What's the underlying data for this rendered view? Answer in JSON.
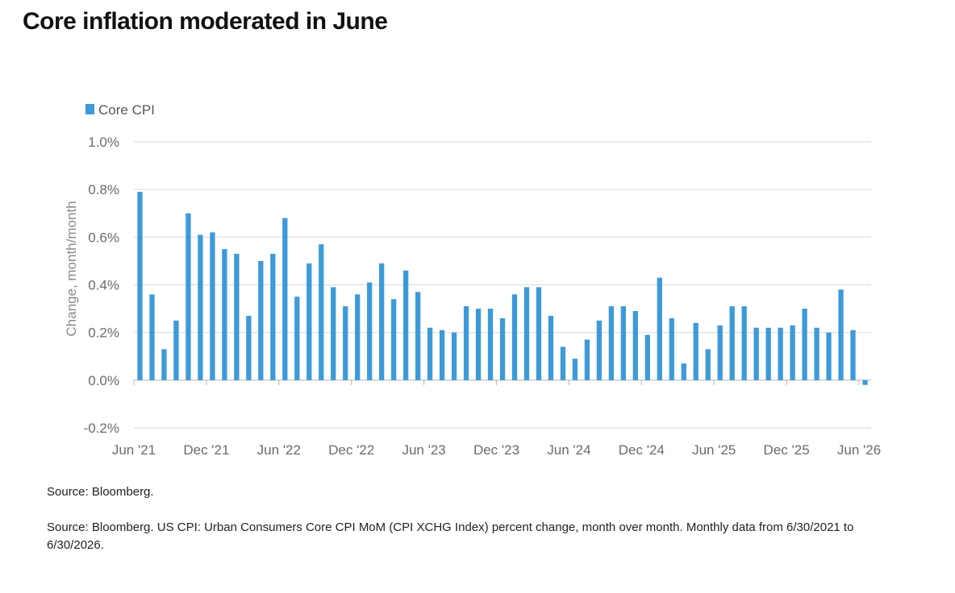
{
  "header": {
    "title": "Core inflation moderated in June"
  },
  "chart_data": {
    "type": "bar",
    "ylabel": "Change, month/month",
    "xlabel": "",
    "ylim": [
      -0.2,
      1.0
    ],
    "yticks": [
      -0.2,
      0.0,
      0.2,
      0.4,
      0.6,
      0.8,
      1.0
    ],
    "ytick_labels": [
      "-0.2%",
      "0.0%",
      "0.2%",
      "0.4%",
      "0.6%",
      "0.8%",
      "1.0%"
    ],
    "grid": true,
    "legend": {
      "position": "top-left",
      "entries": [
        "Core CPI"
      ]
    },
    "xtick_labels": [
      "Jun '21",
      "Dec '21",
      "Jun '22",
      "Dec '22",
      "Jun '23",
      "Dec '23",
      "Jun '24",
      "Dec '24",
      "Jun '25",
      "Dec '25",
      "Jun '26"
    ],
    "xtick_every": 6,
    "colors": {
      "bar": "#3d9ad9",
      "grid": "#dedede",
      "axis": "#bdbdbd"
    },
    "categories": [
      "Jun 2021",
      "Jul 2021",
      "Aug 2021",
      "Sep 2021",
      "Oct 2021",
      "Nov 2021",
      "Dec 2021",
      "Jan 2022",
      "Feb 2022",
      "Mar 2022",
      "Apr 2022",
      "May 2022",
      "Jun 2022",
      "Jul 2022",
      "Aug 2022",
      "Sep 2022",
      "Oct 2022",
      "Nov 2022",
      "Dec 2022",
      "Jan 2023",
      "Feb 2023",
      "Mar 2023",
      "Apr 2023",
      "May 2023",
      "Jun 2023",
      "Jul 2023",
      "Aug 2023",
      "Sep 2023",
      "Oct 2023",
      "Nov 2023",
      "Dec 2023",
      "Jan 2024",
      "Feb 2024",
      "Mar 2024",
      "Apr 2024",
      "May 2024",
      "Jun 2024",
      "Jul 2024",
      "Aug 2024",
      "Sep 2024",
      "Oct 2024",
      "Nov 2024",
      "Dec 2024",
      "Jan 2025",
      "Feb 2025",
      "Mar 2025",
      "Apr 2025",
      "May 2025",
      "Jun 2025",
      "Jul 2025",
      "Aug 2025",
      "Sep 2025",
      "Oct 2025",
      "Nov 2025",
      "Dec 2025",
      "Jan 2026",
      "Feb 2026",
      "Mar 2026",
      "Apr 2026",
      "May 2026",
      "Jun 2026"
    ],
    "series": [
      {
        "name": "Core CPI",
        "values": [
          0.79,
          0.36,
          0.13,
          0.25,
          0.7,
          0.61,
          0.62,
          0.55,
          0.53,
          0.27,
          0.5,
          0.53,
          0.68,
          0.35,
          0.49,
          0.57,
          0.39,
          0.31,
          0.36,
          0.41,
          0.49,
          0.34,
          0.46,
          0.37,
          0.22,
          0.21,
          0.2,
          0.31,
          0.3,
          0.3,
          0.26,
          0.36,
          0.39,
          0.39,
          0.27,
          0.14,
          0.09,
          0.17,
          0.25,
          0.31,
          0.31,
          0.29,
          0.19,
          0.43,
          0.26,
          0.07,
          0.24,
          0.13,
          0.23,
          0.31,
          0.31,
          0.22,
          0.22,
          0.22,
          0.23,
          0.3,
          0.22,
          0.2,
          0.38,
          0.21,
          -0.02
        ]
      }
    ]
  },
  "footer": {
    "source_short": "Source: Bloomberg.",
    "source_long": "Source: Bloomberg. US CPI: Urban Consumers Core CPI MoM (CPI XCHG Index) percent change, month over month. Monthly data from 6/30/2021 to 6/30/2026."
  }
}
